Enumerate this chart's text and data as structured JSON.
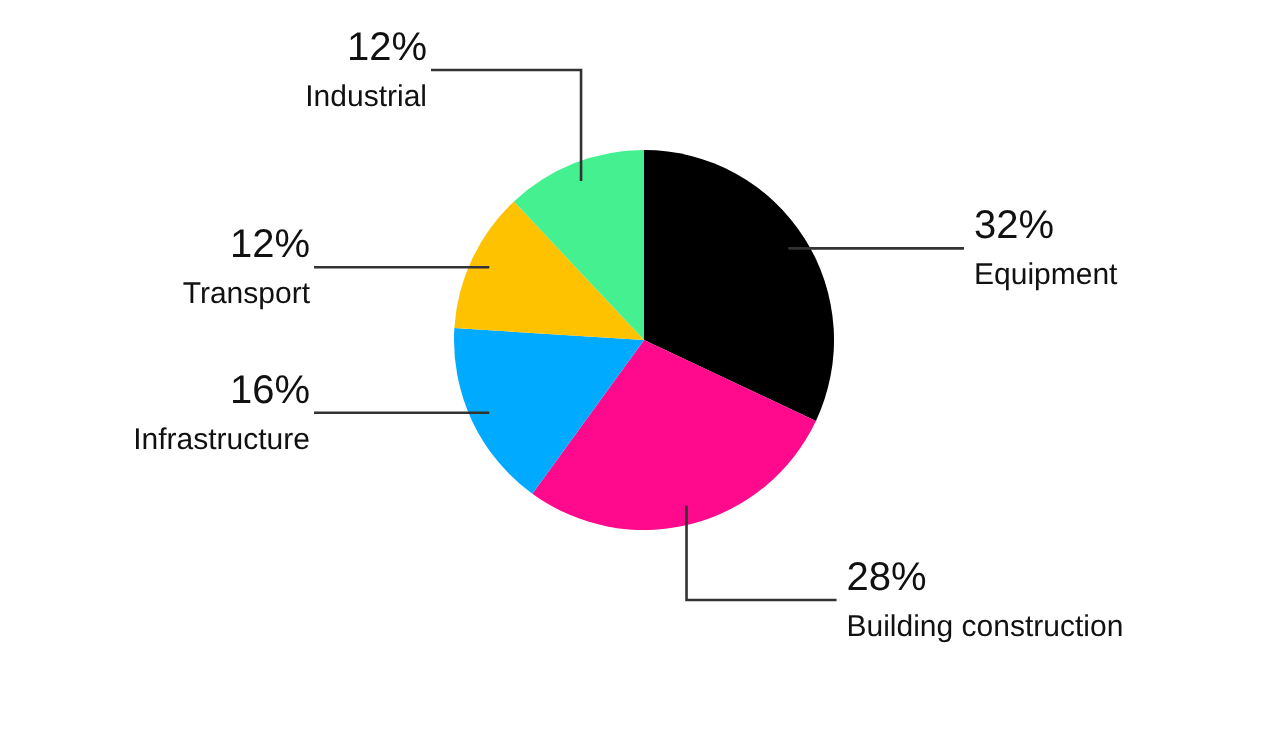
{
  "chart_data": {
    "type": "pie",
    "categories": [
      "Equipment",
      "Building construction",
      "Infrastructure",
      "Transport",
      "Industrial"
    ],
    "values": [
      32,
      28,
      16,
      12,
      12
    ],
    "colors": [
      "#000000",
      "#ff0a8c",
      "#00aaff",
      "#ffc200",
      "#44f08f"
    ],
    "value_labels": [
      "32%",
      "28%",
      "16%",
      "12%",
      "12%"
    ]
  }
}
